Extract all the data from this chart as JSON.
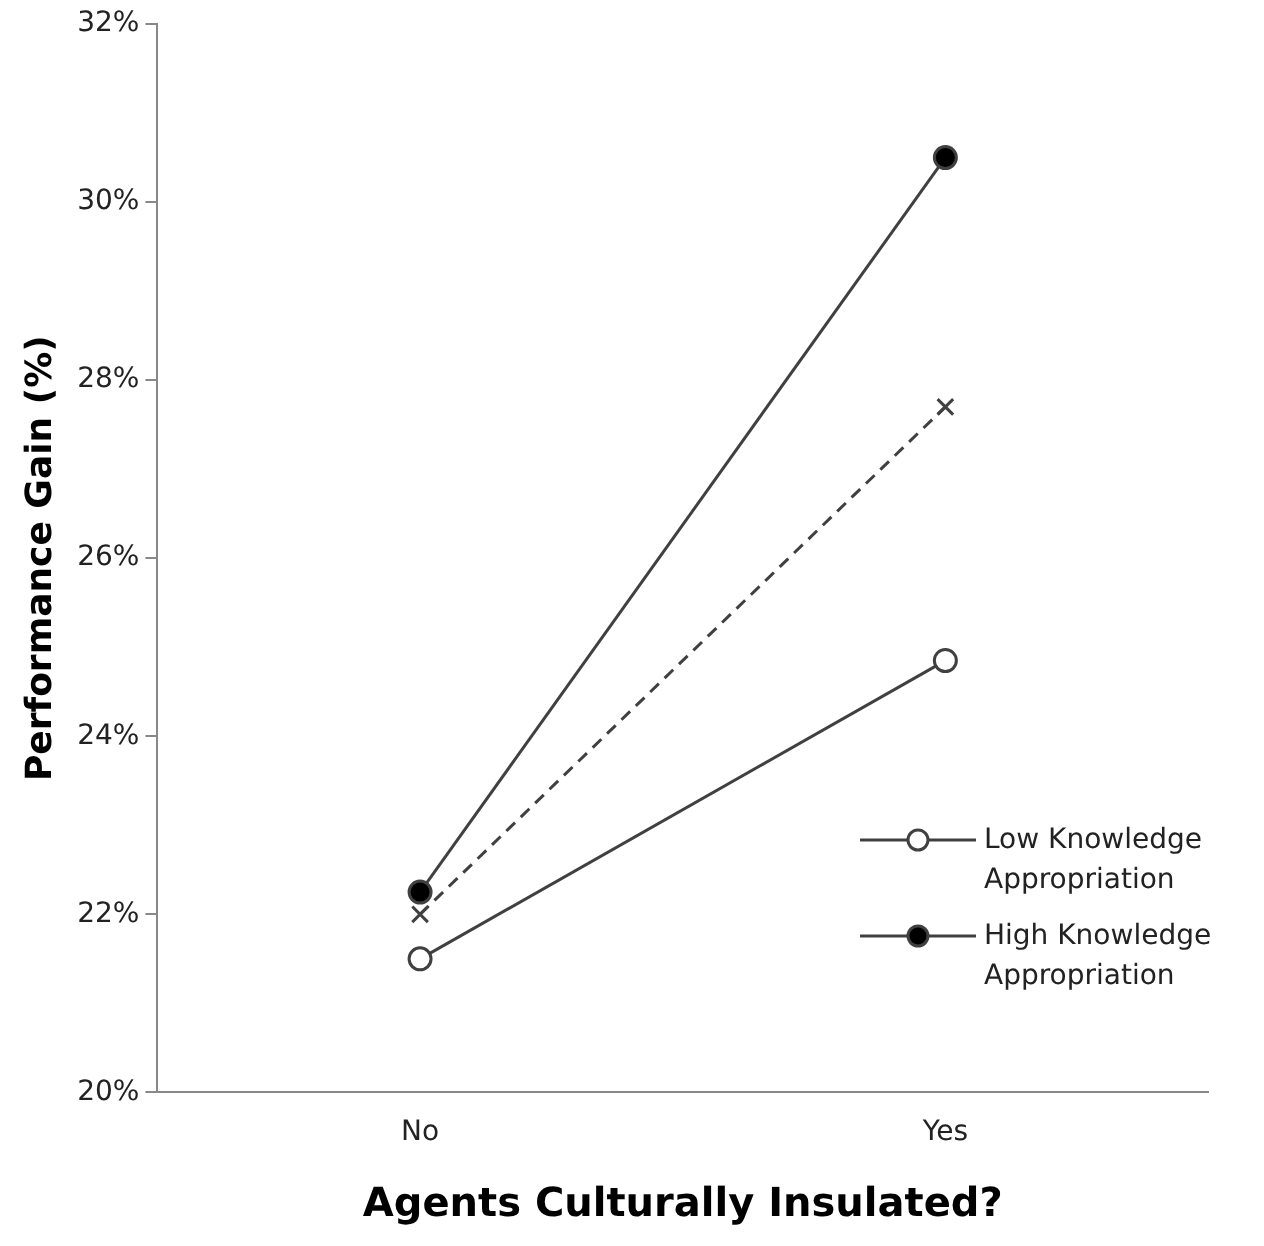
{
  "chart_data": {
    "type": "line",
    "xlabel": "Agents Culturally Insulated?",
    "ylabel": "Performance Gain (%)",
    "categories": [
      "No",
      "Yes"
    ],
    "series": [
      {
        "name": "Low Knowledge Appropriation",
        "color": "#404040",
        "colors": [
          "#ffffff",
          "#ffffff"
        ],
        "marker": "circle",
        "line_style": "solid",
        "values": [
          21.5,
          24.85
        ]
      },
      {
        "name": "High Knowledge Appropriation",
        "color": "#404040",
        "colors": [
          "#000000",
          "#000000"
        ],
        "marker": "circle",
        "line_style": "solid",
        "values": [
          22.25,
          30.5
        ]
      },
      {
        "color": "#404040",
        "marker": "cross",
        "line_style": "dashed",
        "values": [
          22.0,
          27.7
        ]
      }
    ],
    "ylim": [
      20,
      32
    ],
    "yticks": [
      {
        "value": 20,
        "label": "20%"
      },
      {
        "value": 22,
        "label": "22%"
      },
      {
        "value": 24,
        "label": "24%"
      },
      {
        "value": 26,
        "label": "26%"
      },
      {
        "value": 28,
        "label": "28%"
      },
      {
        "value": 30,
        "label": "30%"
      },
      {
        "value": 32,
        "label": "32%"
      }
    ],
    "grid": false,
    "legend": "bottom right"
  }
}
